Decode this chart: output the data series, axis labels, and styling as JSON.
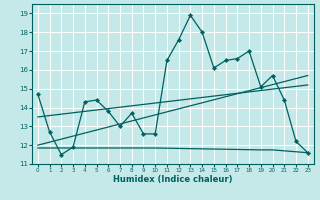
{
  "xlabel": "Humidex (Indice chaleur)",
  "xlim": [
    -0.5,
    23.5
  ],
  "ylim": [
    11,
    19.5
  ],
  "yticks": [
    11,
    12,
    13,
    14,
    15,
    16,
    17,
    18,
    19
  ],
  "xticks": [
    0,
    1,
    2,
    3,
    4,
    5,
    6,
    7,
    8,
    9,
    10,
    11,
    12,
    13,
    14,
    15,
    16,
    17,
    18,
    19,
    20,
    21,
    22,
    23
  ],
  "background_color": "#c5e8e8",
  "grid_color": "#ffffff",
  "line_color": "#006060",
  "line1_x": [
    0,
    1,
    2,
    3,
    4,
    5,
    6,
    7,
    8,
    9,
    10,
    11,
    12,
    13,
    14,
    15,
    16,
    17,
    18,
    19,
    20,
    21,
    22,
    23
  ],
  "line1_y": [
    14.7,
    12.7,
    11.5,
    11.9,
    14.3,
    14.4,
    13.8,
    13.0,
    13.7,
    12.6,
    12.6,
    16.5,
    17.6,
    18.9,
    18.0,
    16.1,
    16.5,
    16.6,
    17.0,
    15.1,
    15.7,
    14.4,
    12.2,
    11.6
  ],
  "line2_x": [
    0,
    23
  ],
  "line2_y": [
    12.0,
    15.7
  ],
  "line3_x": [
    0,
    23
  ],
  "line3_y": [
    13.5,
    15.2
  ],
  "line4_x": [
    0,
    9,
    10,
    19,
    20,
    23
  ],
  "line4_y": [
    11.85,
    11.85,
    11.85,
    11.75,
    11.75,
    11.6
  ]
}
